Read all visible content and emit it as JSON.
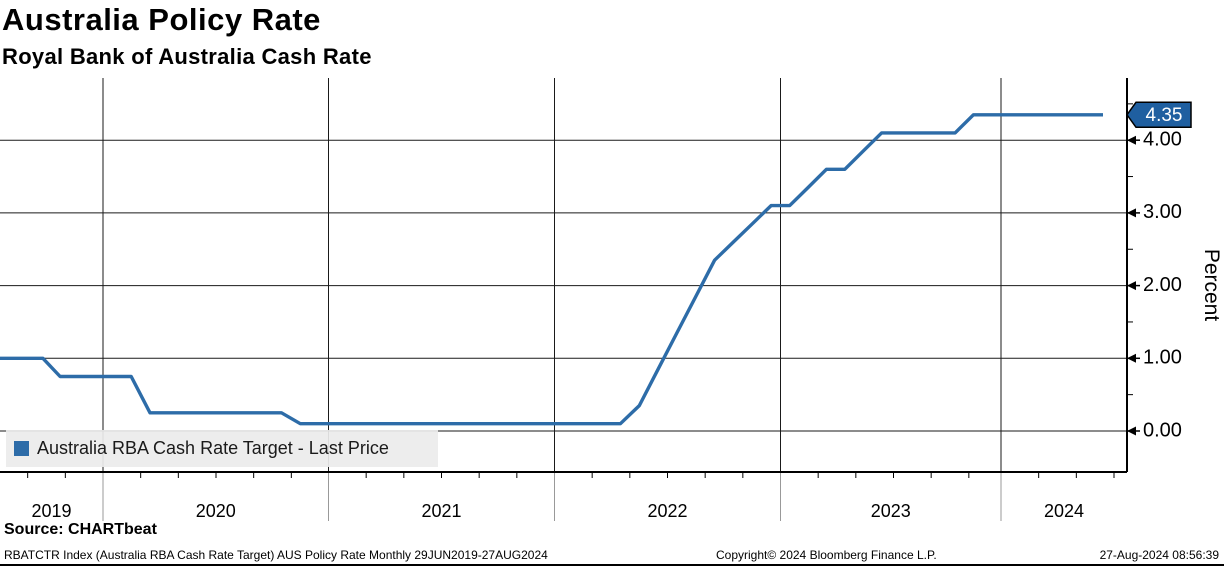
{
  "header": {
    "title": "Australia Policy Rate",
    "subtitle": "Royal Bank of Australia Cash Rate"
  },
  "legend": {
    "label": "Australia RBA Cash Rate Target - Last Price"
  },
  "chart_data": {
    "type": "line",
    "title": "Australia Policy Rate",
    "subtitle": "Royal Bank of Australia Cash Rate",
    "ylabel": "Percent",
    "xlabel": "",
    "grid": "on",
    "legend_position": "bottom-left",
    "ylim": [
      -0.55,
      4.9
    ],
    "y_major_ticks": [
      0,
      1,
      2,
      3,
      4
    ],
    "y_tick_labels": [
      "0.00",
      "1.00",
      "2.00",
      "3.00",
      "4.00"
    ],
    "y_minor_ticks": [
      0.5,
      1.5,
      2.5,
      3.5,
      4.5
    ],
    "x_tick_labels": [
      "2019",
      "2020",
      "2021",
      "2022",
      "2023",
      "2024"
    ],
    "last_price": 4.35,
    "last_price_label": "4.35",
    "line_color": "#2d6ca8",
    "callout_color": "#1f5fa0",
    "series": [
      {
        "name": "Australia RBA Cash Rate Target - Last Price",
        "color": "#2d6ca8",
        "points": [
          [
            "2019-06",
            1.0
          ],
          [
            "2019-07",
            1.0
          ],
          [
            "2019-08",
            1.0
          ],
          [
            "2019-09",
            1.0
          ],
          [
            "2019-10",
            0.75
          ],
          [
            "2019-11",
            0.75
          ],
          [
            "2019-12",
            0.75
          ],
          [
            "2020-01",
            0.75
          ],
          [
            "2020-02",
            0.75
          ],
          [
            "2020-03",
            0.25
          ],
          [
            "2020-04",
            0.25
          ],
          [
            "2020-05",
            0.25
          ],
          [
            "2020-06",
            0.25
          ],
          [
            "2020-07",
            0.25
          ],
          [
            "2020-08",
            0.25
          ],
          [
            "2020-09",
            0.25
          ],
          [
            "2020-10",
            0.25
          ],
          [
            "2020-11",
            0.1
          ],
          [
            "2020-12",
            0.1
          ],
          [
            "2021-01",
            0.1
          ],
          [
            "2021-02",
            0.1
          ],
          [
            "2021-03",
            0.1
          ],
          [
            "2021-04",
            0.1
          ],
          [
            "2021-05",
            0.1
          ],
          [
            "2021-06",
            0.1
          ],
          [
            "2021-07",
            0.1
          ],
          [
            "2021-08",
            0.1
          ],
          [
            "2021-09",
            0.1
          ],
          [
            "2021-10",
            0.1
          ],
          [
            "2021-11",
            0.1
          ],
          [
            "2021-12",
            0.1
          ],
          [
            "2022-01",
            0.1
          ],
          [
            "2022-02",
            0.1
          ],
          [
            "2022-03",
            0.1
          ],
          [
            "2022-04",
            0.1
          ],
          [
            "2022-05",
            0.35
          ],
          [
            "2022-06",
            0.85
          ],
          [
            "2022-07",
            1.35
          ],
          [
            "2022-08",
            1.85
          ],
          [
            "2022-09",
            2.35
          ],
          [
            "2022-10",
            2.6
          ],
          [
            "2022-11",
            2.85
          ],
          [
            "2022-12",
            3.1
          ],
          [
            "2023-01",
            3.1
          ],
          [
            "2023-02",
            3.35
          ],
          [
            "2023-03",
            3.6
          ],
          [
            "2023-04",
            3.6
          ],
          [
            "2023-05",
            3.85
          ],
          [
            "2023-06",
            4.1
          ],
          [
            "2023-07",
            4.1
          ],
          [
            "2023-08",
            4.1
          ],
          [
            "2023-09",
            4.1
          ],
          [
            "2023-10",
            4.1
          ],
          [
            "2023-11",
            4.35
          ],
          [
            "2023-12",
            4.35
          ],
          [
            "2024-01",
            4.35
          ],
          [
            "2024-02",
            4.35
          ],
          [
            "2024-03",
            4.35
          ],
          [
            "2024-04",
            4.35
          ],
          [
            "2024-05",
            4.35
          ],
          [
            "2024-06",
            4.35
          ],
          [
            "2024-07",
            4.35
          ],
          [
            "2024-08",
            4.35
          ]
        ]
      }
    ]
  },
  "footer": {
    "source": "Source: CHARTbeat",
    "security_line": "RBATCTR Index (Australia RBA Cash Rate Target) AUS Policy Rate  Monthly 29JUN2019-27AUG2024",
    "copyright": "Copyright© 2024 Bloomberg Finance L.P.",
    "timestamp": "27-Aug-2024 08:56:39"
  }
}
